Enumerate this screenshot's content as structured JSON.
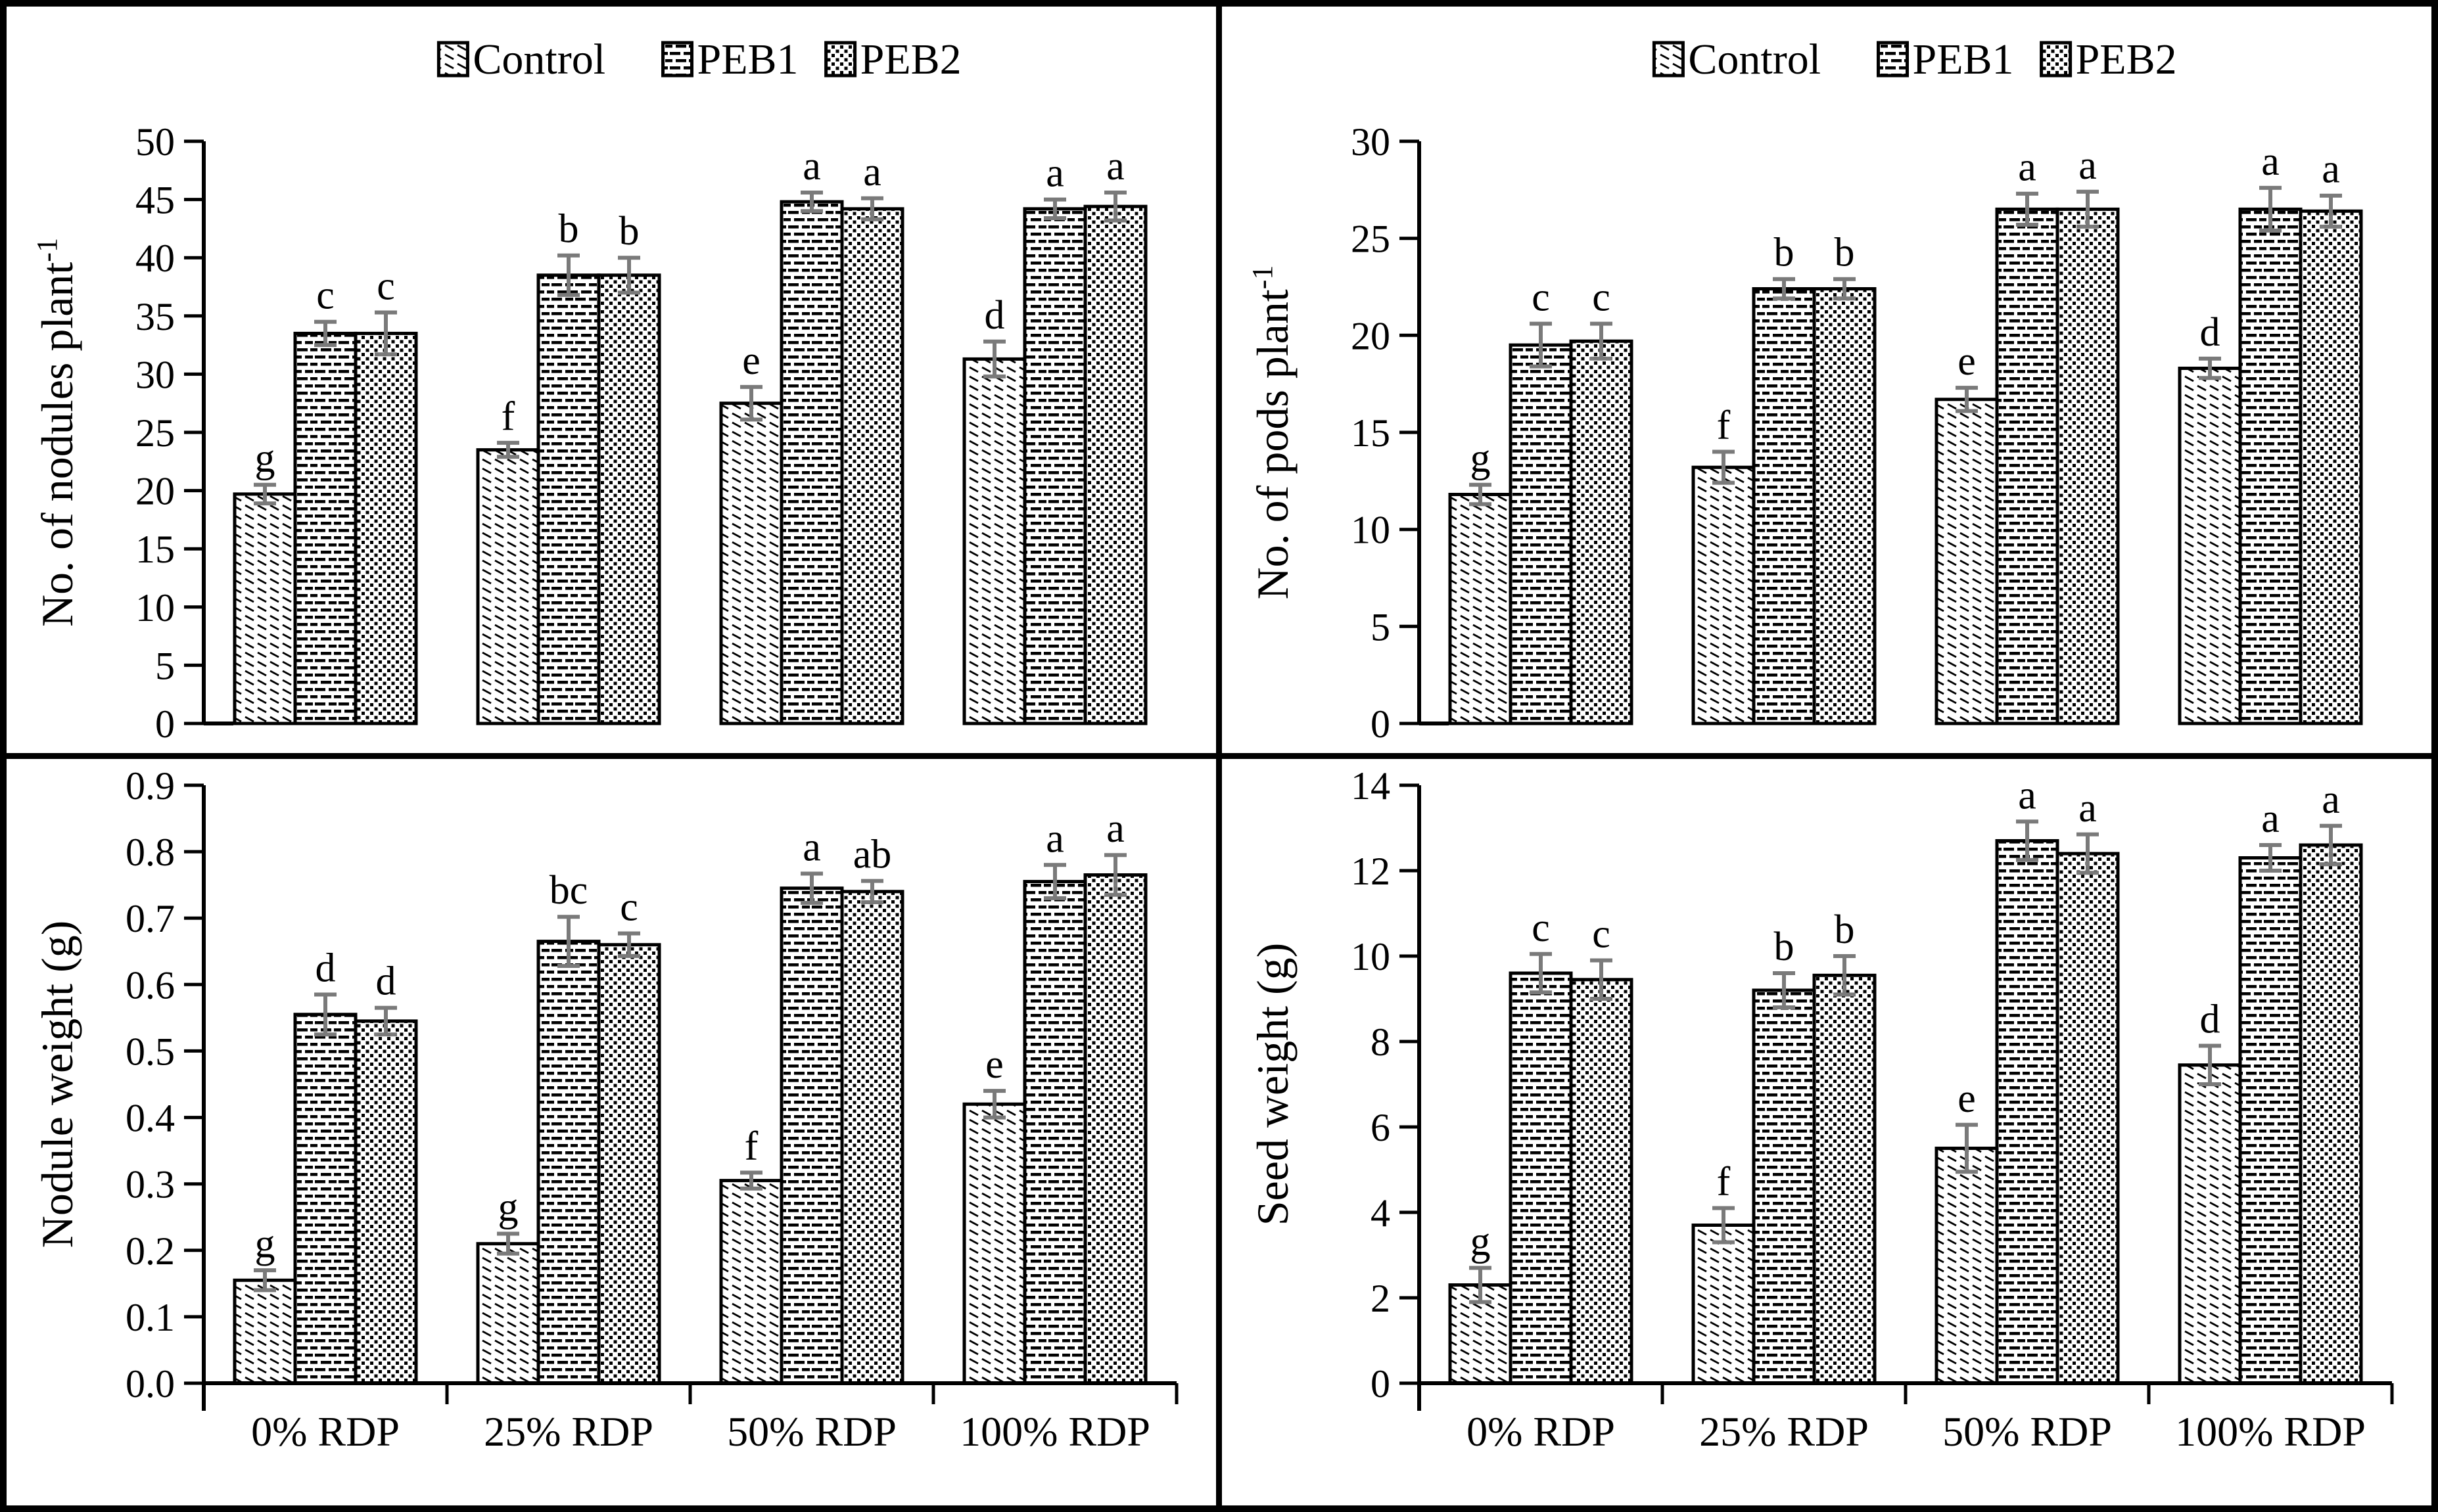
{
  "figure": {
    "description": "Four-panel bar chart figure with significance letters and error bars",
    "background_color": "#ffffff",
    "border_color": "#000000",
    "bar_edge_color": "#000000",
    "error_bar_color": "#7a7a7a"
  },
  "legend": {
    "items": [
      {
        "label": "Control",
        "pattern": "diagonal-hatch"
      },
      {
        "label": "PEB1",
        "pattern": "horizontal-dash"
      },
      {
        "label": "PEB2",
        "pattern": "dot-check"
      }
    ]
  },
  "categories": [
    "0% RDP",
    "25% RDP",
    "50% RDP",
    "100% RDP"
  ],
  "chart_data": [
    {
      "id": "nodules",
      "type": "bar",
      "position": "top-left",
      "row": "top",
      "ylabel": "No. of nodules plant⁻¹",
      "ylim": [
        0,
        50
      ],
      "ytick_step": 5,
      "ytick_decimals": 0,
      "grid": false,
      "legend_position": "top-center",
      "show_legend": true,
      "show_xlabels": false,
      "categories": [
        "0% RDP",
        "25% RDP",
        "50% RDP",
        "100% RDP"
      ],
      "series": [
        {
          "name": "Control",
          "pattern": "diagonal-hatch",
          "values": [
            19.7,
            23.5,
            27.5,
            31.3
          ],
          "errors": [
            0.8,
            0.6,
            1.4,
            1.5
          ],
          "letters": [
            "g",
            "f",
            "e",
            "d"
          ]
        },
        {
          "name": "PEB1",
          "pattern": "horizontal-dash",
          "values": [
            33.5,
            38.5,
            44.8,
            44.2
          ],
          "errors": [
            1.0,
            1.7,
            0.8,
            0.8
          ],
          "letters": [
            "c",
            "b",
            "a",
            "a"
          ]
        },
        {
          "name": "PEB2",
          "pattern": "dot-check",
          "values": [
            33.5,
            38.5,
            44.2,
            44.4
          ],
          "errors": [
            1.8,
            1.5,
            0.9,
            1.2
          ],
          "letters": [
            "c",
            "b",
            "a",
            "a"
          ]
        }
      ]
    },
    {
      "id": "pods",
      "type": "bar",
      "position": "top-right",
      "row": "top",
      "ylabel": "No. of pods plant⁻¹",
      "ylim": [
        0,
        30
      ],
      "ytick_step": 5,
      "ytick_decimals": 0,
      "grid": false,
      "legend_position": "top-center",
      "show_legend": true,
      "show_xlabels": false,
      "categories": [
        "0% RDP",
        "25% RDP",
        "50% RDP",
        "100% RDP"
      ],
      "series": [
        {
          "name": "Control",
          "pattern": "diagonal-hatch",
          "values": [
            11.8,
            13.2,
            16.7,
            18.3
          ],
          "errors": [
            0.5,
            0.8,
            0.6,
            0.5
          ],
          "letters": [
            "g",
            "f",
            "e",
            "d"
          ]
        },
        {
          "name": "PEB1",
          "pattern": "horizontal-dash",
          "values": [
            19.5,
            22.4,
            26.5,
            26.5
          ],
          "errors": [
            1.1,
            0.5,
            0.8,
            1.1
          ],
          "letters": [
            "c",
            "b",
            "a",
            "a"
          ]
        },
        {
          "name": "PEB2",
          "pattern": "dot-check",
          "values": [
            19.7,
            22.4,
            26.5,
            26.4
          ],
          "errors": [
            0.9,
            0.5,
            0.9,
            0.8
          ],
          "letters": [
            "c",
            "b",
            "a",
            "a"
          ]
        }
      ]
    },
    {
      "id": "nodule-weight",
      "type": "bar",
      "position": "bottom-left",
      "row": "bottom",
      "ylabel": "Nodule weight (g)",
      "ylim": [
        0,
        0.9
      ],
      "ytick_step": 0.1,
      "ytick_decimals": 1,
      "grid": false,
      "show_legend": false,
      "show_xlabels": true,
      "categories": [
        "0% RDP",
        "25% RDP",
        "50% RDP",
        "100% RDP"
      ],
      "series": [
        {
          "name": "Control",
          "pattern": "diagonal-hatch",
          "values": [
            0.155,
            0.21,
            0.305,
            0.42
          ],
          "errors": [
            0.015,
            0.015,
            0.012,
            0.02
          ],
          "letters": [
            "g",
            "g",
            "f",
            "e"
          ]
        },
        {
          "name": "PEB1",
          "pattern": "horizontal-dash",
          "values": [
            0.555,
            0.665,
            0.745,
            0.755
          ],
          "errors": [
            0.03,
            0.037,
            0.022,
            0.025
          ],
          "letters": [
            "d",
            "bc",
            "a",
            "a"
          ]
        },
        {
          "name": "PEB2",
          "pattern": "dot-check",
          "values": [
            0.545,
            0.66,
            0.74,
            0.765
          ],
          "errors": [
            0.02,
            0.017,
            0.016,
            0.03
          ],
          "letters": [
            "d",
            "c",
            "ab",
            "a"
          ]
        }
      ]
    },
    {
      "id": "seed-weight",
      "type": "bar",
      "position": "bottom-right",
      "row": "bottom",
      "ylabel": "Seed weight (g)",
      "ylim": [
        0,
        14
      ],
      "ytick_step": 2,
      "ytick_decimals": 0,
      "grid": false,
      "show_legend": false,
      "show_xlabels": true,
      "categories": [
        "0% RDP",
        "25% RDP",
        "50% RDP",
        "100% RDP"
      ],
      "series": [
        {
          "name": "Control",
          "pattern": "diagonal-hatch",
          "values": [
            2.3,
            3.7,
            5.5,
            7.45
          ],
          "errors": [
            0.4,
            0.4,
            0.55,
            0.45
          ],
          "letters": [
            "g",
            "f",
            "e",
            "d"
          ]
        },
        {
          "name": "PEB1",
          "pattern": "horizontal-dash",
          "values": [
            9.6,
            9.2,
            12.7,
            12.3
          ],
          "errors": [
            0.45,
            0.4,
            0.45,
            0.3
          ],
          "letters": [
            "c",
            "b",
            "a",
            "a"
          ]
        },
        {
          "name": "PEB2",
          "pattern": "dot-check",
          "values": [
            9.45,
            9.55,
            12.4,
            12.6
          ],
          "errors": [
            0.45,
            0.45,
            0.45,
            0.45
          ],
          "letters": [
            "c",
            "b",
            "a",
            "a"
          ]
        }
      ]
    }
  ]
}
